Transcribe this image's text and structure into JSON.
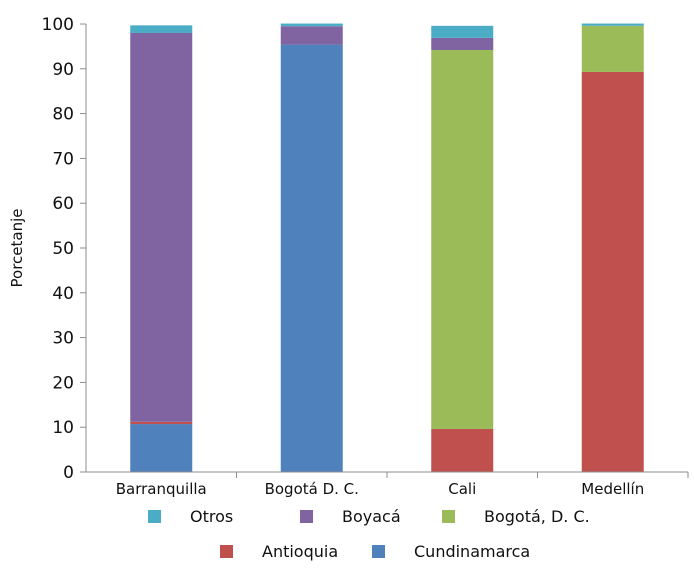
{
  "chart_data": {
    "type": "bar",
    "stacked": true,
    "title": "",
    "xlabel": "",
    "ylabel": "Porcetanje",
    "ylim": [
      0,
      100
    ],
    "yticks": [
      0,
      10,
      20,
      30,
      40,
      50,
      60,
      70,
      80,
      90,
      100
    ],
    "categories": [
      "Barranquilla",
      "Bogotá D. C.",
      "Cali",
      "Medellín"
    ],
    "series": [
      {
        "name": "Cundinamarca",
        "color": "#4f81bd",
        "values": [
          10.7,
          95.4,
          0,
          0
        ]
      },
      {
        "name": "Antioquia",
        "color": "#c0504d",
        "values": [
          0.5,
          0,
          9.6,
          89.3
        ]
      },
      {
        "name": "Bogotá, D. C.",
        "color": "#9bbb59",
        "values": [
          0,
          0,
          84.6,
          10.3
        ]
      },
      {
        "name": "Boyacá",
        "color": "#8064a2",
        "values": [
          86.8,
          4.1,
          2.7,
          0
        ]
      },
      {
        "name": "Otros",
        "color": "#4bacc6",
        "values": [
          1.7,
          0.6,
          2.7,
          0.5
        ]
      }
    ],
    "legend": {
      "position": "bottom",
      "rows": [
        [
          "Otros",
          "Boyacá",
          "Bogotá, D. C."
        ],
        [
          "Antioquia",
          "Cundinamarca"
        ]
      ]
    },
    "grid": false
  }
}
